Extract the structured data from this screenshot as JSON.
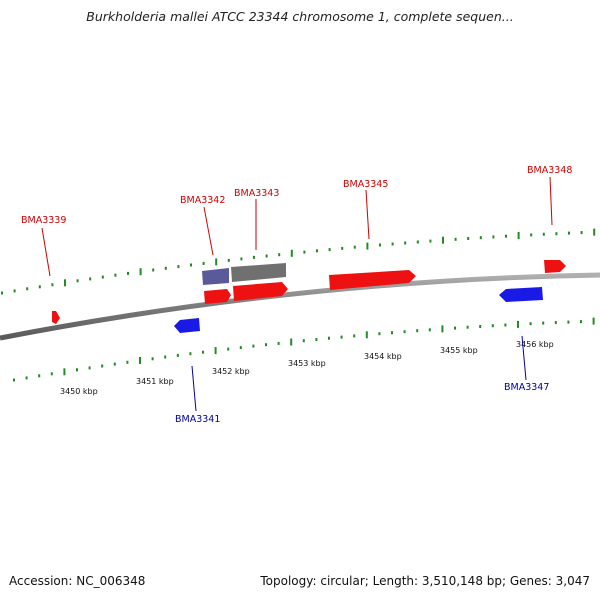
{
  "title": "Burkholderia mallei ATCC 23344 chromosome 1, complete sequen...",
  "footer": {
    "accession": "Accession: NC_006348",
    "summary": "Topology: circular; Length: 3,510,148 bp; Genes: 3,047"
  },
  "colors": {
    "forward_gene": "#ee1111",
    "reverse_gene": "#1a1ae6",
    "pseudo_forward": "#707070",
    "pseudo_reverse": "#5a5a9a",
    "forward_label": "#cc0000",
    "reverse_label": "#000099",
    "backbone": "#808080",
    "tick_mark": "#228b22"
  },
  "scale_labels": [
    "3450 kbp",
    "3451 kbp",
    "3452 kbp",
    "3453 kbp",
    "3454 kbp",
    "3455 kbp",
    "3456 kbp"
  ],
  "genes": [
    {
      "name": "BMA3339",
      "strand": "forward",
      "labeled": true
    },
    {
      "name": "BMA3341",
      "strand": "reverse",
      "labeled": true
    },
    {
      "name": "BMA3342",
      "strand": "forward",
      "labeled": true
    },
    {
      "name": "BMA3343",
      "strand": "forward",
      "labeled": true
    },
    {
      "name": "BMA3345",
      "strand": "forward",
      "labeled": true
    },
    {
      "name": "BMA3347",
      "strand": "reverse",
      "labeled": true
    },
    {
      "name": "BMA3348",
      "strand": "forward",
      "labeled": true
    }
  ]
}
